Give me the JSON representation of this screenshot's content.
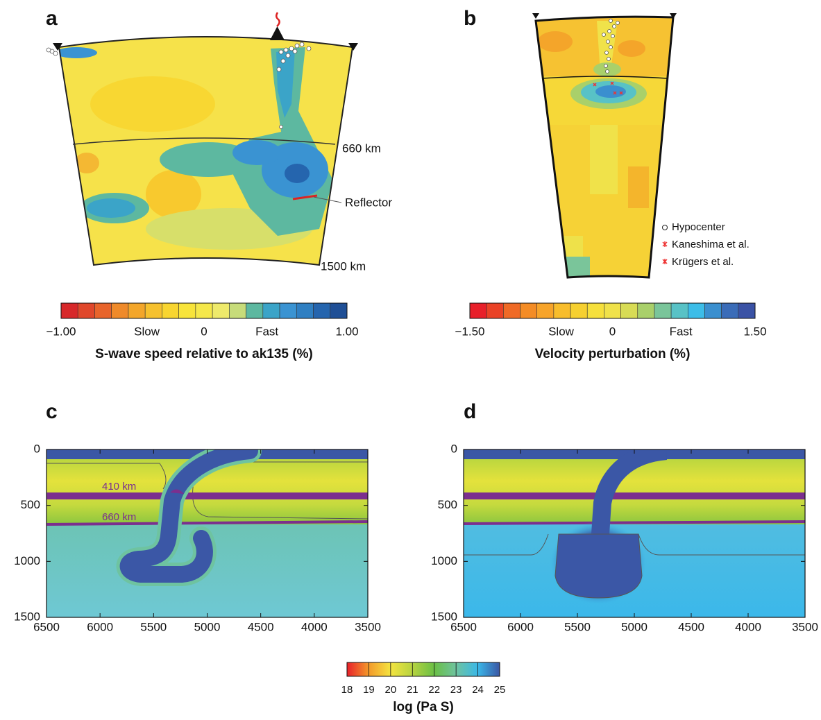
{
  "panel_a": {
    "label": "a",
    "depth_labels": [
      "660 km",
      "1500 km"
    ],
    "reflector": "Reflector",
    "colorbar": {
      "colors": [
        "#d7282a",
        "#e0472b",
        "#e8642b",
        "#ef8a2a",
        "#f3a62a",
        "#f6c12e",
        "#f8d530",
        "#f8e43a",
        "#f5e84a",
        "#eeea6b",
        "#c7dc7a",
        "#5db8a0",
        "#3ba4c8",
        "#3a93d2",
        "#2f7fc2",
        "#2565ae",
        "#1f4f96"
      ],
      "labels": [
        "−1.00",
        "Slow",
        "0",
        "Fast",
        "1.00"
      ],
      "title": "S-wave speed relative to ak135 (%)"
    }
  },
  "panel_b": {
    "label": "b",
    "legend": [
      "Hypocenter",
      "Kaneshima et al.",
      "Krügers et al."
    ],
    "colorbar": {
      "colors": [
        "#e8202a",
        "#ea4226",
        "#ef6a26",
        "#f48c25",
        "#f7a42a",
        "#f8bd2c",
        "#f6d030",
        "#f6e03c",
        "#f0e24a",
        "#d8dc55",
        "#a9d06a",
        "#7ac59a",
        "#58c2c6",
        "#3cbde8",
        "#3a8fcf",
        "#3a6cb8",
        "#3a52a5"
      ],
      "labels": [
        "−1.50",
        "Slow",
        "0",
        "Fast",
        "1.50"
      ],
      "title": "Velocity perturbation (%)"
    }
  },
  "panel_c": {
    "label": "c",
    "annotations": [
      "410 km",
      "660 km"
    ],
    "xlim": [
      6500,
      3500
    ],
    "ylim": [
      0,
      1500
    ],
    "xticks": [
      6500,
      6000,
      5500,
      5000,
      4500,
      4000,
      3500
    ],
    "yticks": [
      0,
      500,
      1000,
      1500
    ]
  },
  "panel_d": {
    "label": "d",
    "xlim": [
      6500,
      3500
    ],
    "ylim": [
      0,
      1500
    ],
    "xticks": [
      6500,
      6000,
      5500,
      5000,
      4500,
      4000,
      3500
    ],
    "yticks": [
      0,
      500,
      1000,
      1500
    ]
  },
  "viscosity_colorbar": {
    "ticks": [
      18,
      19,
      20,
      21,
      22,
      23,
      24,
      25
    ],
    "colors": [
      "#e8202a",
      "#f39a2a",
      "#f4e440",
      "#b6d340",
      "#6abf45",
      "#6ec3a0",
      "#3ab8e8"
    ],
    "last_color": "#3a56a5",
    "title": "log (Pa S)"
  }
}
